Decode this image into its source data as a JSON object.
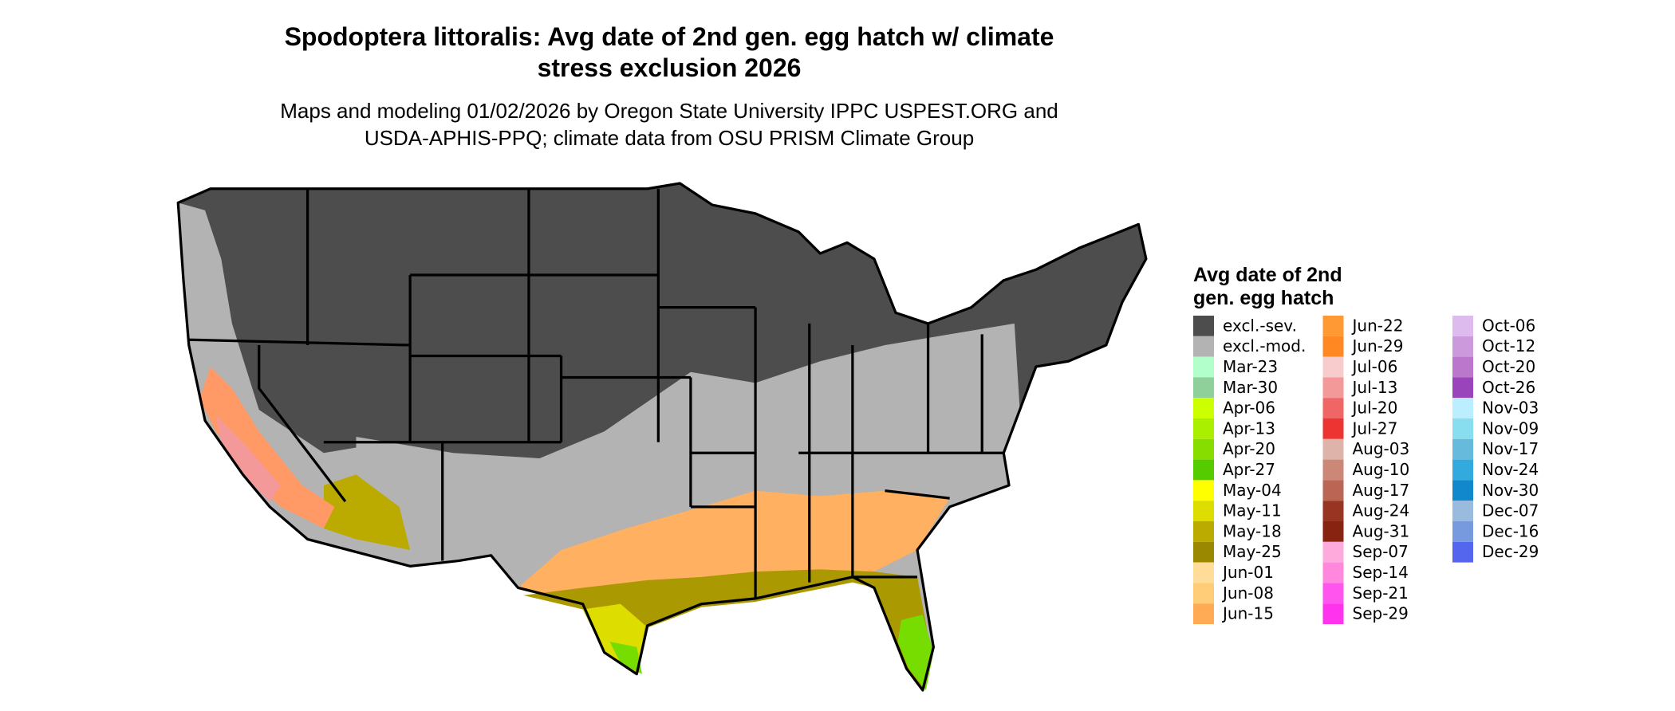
{
  "title": [
    "Spodoptera littoralis: Avg date of 2nd gen. egg hatch w/ climate",
    "stress exclusion 2026"
  ],
  "subtitle": [
    "Maps and modeling 01/02/2026 by Oregon State University IPPC USPEST.ORG and",
    "USDA-APHIS-PPQ; climate data from OSU PRISM Climate Group"
  ],
  "legend": {
    "title": [
      "Avg date of 2nd",
      "gen. egg hatch"
    ],
    "entries": [
      {
        "label": "excl.-sev.",
        "color": "#4d4d4d"
      },
      {
        "label": "excl.-mod.",
        "color": "#b3b3b3"
      },
      {
        "label": "Mar-23",
        "color": "#b3ffcc"
      },
      {
        "label": "Mar-30",
        "color": "#8fcf99"
      },
      {
        "label": "Apr-06",
        "color": "#ccff00"
      },
      {
        "label": "Apr-13",
        "color": "#aaee00"
      },
      {
        "label": "Apr-20",
        "color": "#88dd00"
      },
      {
        "label": "Apr-27",
        "color": "#55cc00"
      },
      {
        "label": "May-04",
        "color": "#ffff00"
      },
      {
        "label": "May-11",
        "color": "#dddd00"
      },
      {
        "label": "May-18",
        "color": "#bbaa00"
      },
      {
        "label": "May-25",
        "color": "#998800"
      },
      {
        "label": "Jun-01",
        "color": "#ffdd99"
      },
      {
        "label": "Jun-08",
        "color": "#ffcc77"
      },
      {
        "label": "Jun-15",
        "color": "#ffaa55"
      },
      {
        "label": "Jun-22",
        "color": "#ff9933"
      },
      {
        "label": "Jun-29",
        "color": "#ff8822"
      },
      {
        "label": "Jul-06",
        "color": "#f8cccc"
      },
      {
        "label": "Jul-13",
        "color": "#f49999"
      },
      {
        "label": "Jul-20",
        "color": "#f06666"
      },
      {
        "label": "Jul-27",
        "color": "#ee3333"
      },
      {
        "label": "Aug-03",
        "color": "#ddb3aa"
      },
      {
        "label": "Aug-10",
        "color": "#cc8877"
      },
      {
        "label": "Aug-17",
        "color": "#bb6655"
      },
      {
        "label": "Aug-24",
        "color": "#993322"
      },
      {
        "label": "Aug-31",
        "color": "#882211"
      },
      {
        "label": "Sep-07",
        "color": "#ffaadd"
      },
      {
        "label": "Sep-14",
        "color": "#ff88dd"
      },
      {
        "label": "Sep-21",
        "color": "#ff55ee"
      },
      {
        "label": "Sep-29",
        "color": "#ff33ee"
      },
      {
        "label": "Oct-06",
        "color": "#ddbbee"
      },
      {
        "label": "Oct-12",
        "color": "#cc99dd"
      },
      {
        "label": "Oct-20",
        "color": "#bb77cc"
      },
      {
        "label": "Oct-26",
        "color": "#9944bb"
      },
      {
        "label": "Nov-03",
        "color": "#bbeeff"
      },
      {
        "label": "Nov-09",
        "color": "#88ddee"
      },
      {
        "label": "Nov-17",
        "color": "#66bbdd"
      },
      {
        "label": "Nov-24",
        "color": "#33aadd"
      },
      {
        "label": "Nov-30",
        "color": "#1188cc"
      },
      {
        "label": "Dec-07",
        "color": "#99bbdd"
      },
      {
        "label": "Dec-16",
        "color": "#7799dd"
      },
      {
        "label": "Dec-29",
        "color": "#5566ee"
      }
    ]
  }
}
